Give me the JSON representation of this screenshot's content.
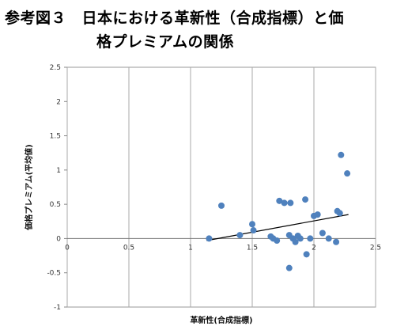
{
  "header": {
    "title_line1": "参考図３　日本における革新性（合成指標）と価",
    "title_line2": "格プレミアムの関係"
  },
  "chart_data": {
    "type": "scatter",
    "xlabel": "革新性(合成指標)",
    "ylabel": "価格プレミアム(平均値)",
    "xlim": [
      0,
      2.5
    ],
    "ylim": [
      -1,
      2.5
    ],
    "xticks": [
      0,
      0.5,
      1,
      1.5,
      2,
      2.5
    ],
    "yticks": [
      -1,
      -0.5,
      0,
      0.5,
      1,
      1.5,
      2,
      2.5
    ],
    "xtick_labels": [
      "0",
      "0.5",
      "1",
      "1.5",
      "2",
      "2.5"
    ],
    "ytick_labels": [
      "-1",
      "-0.5",
      "0",
      "0.5",
      "1",
      "1.5",
      "2",
      "2.5"
    ],
    "grid": "vertical",
    "legend": "none",
    "point_color": "#4f81bd",
    "trendline_color": "#000000",
    "trendline": {
      "x": [
        1.13,
        2.28
      ],
      "y": [
        -0.03,
        0.35
      ]
    },
    "points": [
      {
        "x": 1.15,
        "y": 0.0
      },
      {
        "x": 1.25,
        "y": 0.48
      },
      {
        "x": 1.4,
        "y": 0.05
      },
      {
        "x": 1.5,
        "y": 0.21
      },
      {
        "x": 1.51,
        "y": 0.12
      },
      {
        "x": 1.65,
        "y": 0.03
      },
      {
        "x": 1.67,
        "y": 0.0
      },
      {
        "x": 1.7,
        "y": -0.03
      },
      {
        "x": 1.72,
        "y": 0.55
      },
      {
        "x": 1.76,
        "y": 0.52
      },
      {
        "x": 1.8,
        "y": 0.05
      },
      {
        "x": 1.8,
        "y": -0.43
      },
      {
        "x": 1.81,
        "y": 0.52
      },
      {
        "x": 1.83,
        "y": 0.0
      },
      {
        "x": 1.85,
        "y": -0.05
      },
      {
        "x": 1.87,
        "y": 0.04
      },
      {
        "x": 1.89,
        "y": 0.0
      },
      {
        "x": 1.93,
        "y": 0.57
      },
      {
        "x": 1.94,
        "y": -0.23
      },
      {
        "x": 1.97,
        "y": 0.0
      },
      {
        "x": 2.0,
        "y": 0.33
      },
      {
        "x": 2.03,
        "y": 0.35
      },
      {
        "x": 2.07,
        "y": 0.08
      },
      {
        "x": 2.12,
        "y": 0.0
      },
      {
        "x": 2.18,
        "y": -0.05
      },
      {
        "x": 2.19,
        "y": 0.4
      },
      {
        "x": 2.21,
        "y": 0.37
      },
      {
        "x": 2.22,
        "y": 1.22
      },
      {
        "x": 2.27,
        "y": 0.95
      }
    ]
  }
}
